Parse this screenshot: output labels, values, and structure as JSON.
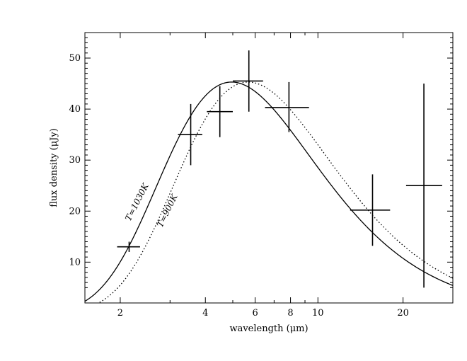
{
  "chart_data": {
    "type": "scatter",
    "title": "",
    "xlabel": "wavelength (μm)",
    "ylabel": "flux density (μJy)",
    "x_scale": "log",
    "xlim": [
      1.5,
      30
    ],
    "ylim": [
      2,
      55
    ],
    "x_ticks": [
      {
        "value": 2,
        "label": "2"
      },
      {
        "value": 4,
        "label": "4"
      },
      {
        "value": 6,
        "label": "6"
      },
      {
        "value": 8,
        "label": "8"
      },
      {
        "value": 10,
        "label": "10"
      },
      {
        "value": 20,
        "label": "20"
      }
    ],
    "y_ticks": [
      10,
      20,
      30,
      40,
      50
    ],
    "series": [
      {
        "style": "crosses",
        "points": [
          {
            "x": 2.15,
            "y": 13.0,
            "xerr": [
              1.95,
              2.35
            ],
            "yerr": [
              12.0,
              14.0
            ]
          },
          {
            "x": 3.55,
            "y": 35.0,
            "xerr": [
              3.2,
              3.9
            ],
            "yerr": [
              29.0,
              41.0
            ]
          },
          {
            "x": 4.5,
            "y": 39.5,
            "xerr": [
              4.05,
              5.0
            ],
            "yerr": [
              34.5,
              44.5
            ]
          },
          {
            "x": 5.7,
            "y": 45.5,
            "xerr": [
              5.0,
              6.4
            ],
            "yerr": [
              39.5,
              51.5
            ]
          },
          {
            "x": 7.9,
            "y": 40.3,
            "xerr": [
              6.5,
              9.3
            ],
            "yerr": [
              35.5,
              45.3
            ]
          },
          {
            "x": 15.6,
            "y": 20.2,
            "xerr": [
              13.0,
              18.0
            ],
            "yerr": [
              13.2,
              27.2
            ]
          },
          {
            "x": 23.7,
            "y": 25.0,
            "xerr": [
              20.5,
              27.5
            ],
            "yerr": [
              5.0,
              45.0
            ]
          }
        ]
      },
      {
        "name": "T=1030K",
        "style": "solid",
        "temperature": 1030
      },
      {
        "name": "T=900K",
        "style": "dotted",
        "temperature": 900
      }
    ]
  }
}
